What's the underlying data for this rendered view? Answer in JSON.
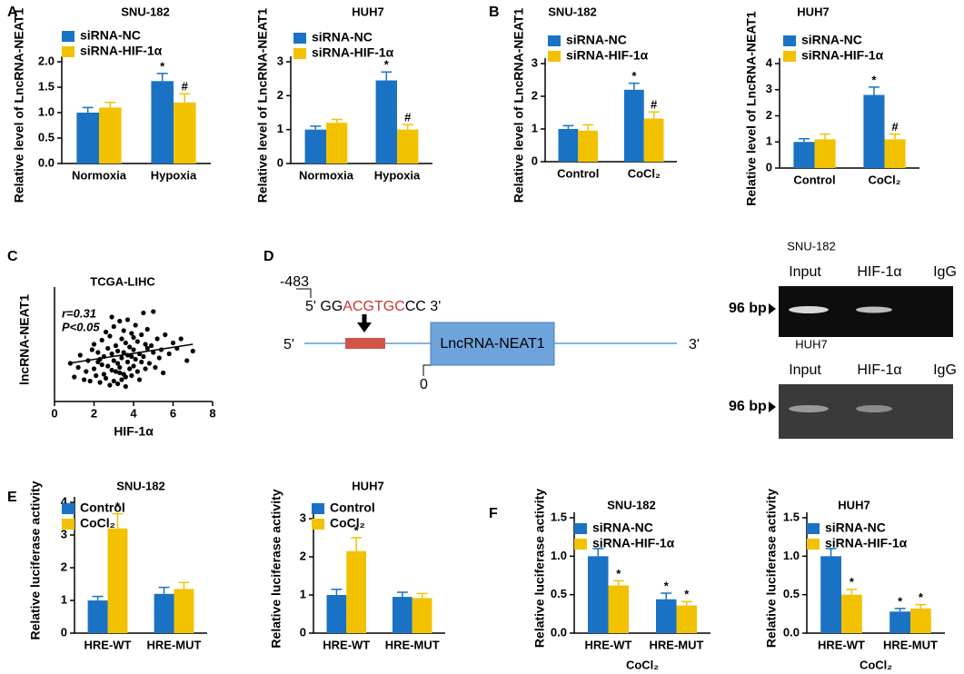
{
  "panels": [
    "A",
    "B",
    "C",
    "D",
    "E",
    "F"
  ],
  "chart_data": [
    {
      "type": "bar",
      "title": "SNU-182",
      "ylabel": "Relative level of LncRNA-NEAT1",
      "categories": [
        "Normoxia",
        "Hypoxia"
      ],
      "ylim": [
        0,
        2
      ],
      "yticks": [
        {
          "value": 0,
          "label": "0.0"
        },
        0.5,
        {
          "value": 1,
          "label": "1.0"
        },
        1.5,
        {
          "value": 2,
          "label": "2.0"
        }
      ],
      "series": [
        {
          "name": "siRNA-NC",
          "color": "#1a72c4",
          "values": [
            1.0,
            1.62
          ],
          "errors": [
            0.1,
            0.15
          ],
          "markers": [
            null,
            "*"
          ]
        },
        {
          "name": "siRNA-HIF-1α",
          "color": "#f2c200",
          "values": [
            1.1,
            1.2
          ],
          "errors": [
            0.1,
            0.17
          ],
          "markers": [
            null,
            "#"
          ]
        }
      ]
    },
    {
      "type": "bar",
      "title": "HUH7",
      "ylabel": "Relative level of LncRNA-NEAT1",
      "categories": [
        "Normoxia",
        "Hypoxia"
      ],
      "ylim": [
        0,
        3
      ],
      "yticks": [
        0,
        1,
        2,
        3
      ],
      "series": [
        {
          "name": "siRNA-NC",
          "color": "#1a72c4",
          "values": [
            1.0,
            2.45
          ],
          "errors": [
            0.1,
            0.25
          ],
          "markers": [
            null,
            "*"
          ]
        },
        {
          "name": "siRNA-HIF-1α",
          "color": "#f2c200",
          "values": [
            1.2,
            1.0
          ],
          "errors": [
            0.1,
            0.15
          ],
          "markers": [
            null,
            "#"
          ]
        }
      ]
    },
    {
      "type": "bar",
      "title": "SNU-182",
      "ylabel": "Relative level of LncRNA-NEAT1",
      "categories": [
        "Control",
        "CoCl₂"
      ],
      "ylim": [
        0,
        3
      ],
      "yticks": [
        0,
        1,
        2,
        3
      ],
      "series": [
        {
          "name": "siRNA-NC",
          "color": "#1a72c4",
          "values": [
            1.0,
            2.2
          ],
          "errors": [
            0.1,
            0.2
          ],
          "markers": [
            null,
            "*"
          ]
        },
        {
          "name": "siRNA-HIF-1α",
          "color": "#f2c200",
          "values": [
            0.95,
            1.32
          ],
          "errors": [
            0.18,
            0.2
          ],
          "markers": [
            null,
            "#"
          ]
        }
      ]
    },
    {
      "type": "bar",
      "title": "HUH7",
      "ylabel": "Relative level of LncRNA-NEAT1",
      "categories": [
        "Control",
        "CoCl₂"
      ],
      "ylim": [
        0,
        4
      ],
      "yticks": [
        0,
        1,
        2,
        3,
        4
      ],
      "series": [
        {
          "name": "siRNA-NC",
          "color": "#1a72c4",
          "values": [
            1.0,
            2.8
          ],
          "errors": [
            0.12,
            0.3
          ],
          "markers": [
            null,
            "*"
          ]
        },
        {
          "name": "siRNA-HIF-1α",
          "color": "#f2c200",
          "values": [
            1.1,
            1.1
          ],
          "errors": [
            0.2,
            0.2
          ],
          "markers": [
            null,
            "#"
          ]
        }
      ]
    },
    {
      "type": "scatter",
      "title": "TCGA-LIHC",
      "xlabel": "HIF-1α",
      "ylabel": "lncRNA-NEAT1",
      "annotations": [
        "r=0.31",
        "P<0.05"
      ],
      "xlim": [
        0,
        8
      ],
      "xticks": [
        0,
        2,
        4,
        6,
        8
      ],
      "ylim": [
        0,
        8
      ],
      "color": "#000000",
      "x": [
        0.8,
        1.0,
        1.2,
        1.3,
        1.5,
        1.6,
        1.7,
        1.8,
        1.9,
        2.0,
        2.0,
        2.1,
        2.2,
        2.2,
        2.3,
        2.4,
        2.4,
        2.5,
        2.5,
        2.6,
        2.6,
        2.7,
        2.7,
        2.8,
        2.8,
        2.9,
        2.9,
        3.0,
        3.0,
        3.0,
        3.1,
        3.1,
        3.2,
        3.2,
        3.2,
        3.3,
        3.3,
        3.4,
        3.4,
        3.4,
        3.5,
        3.5,
        3.5,
        3.6,
        3.6,
        3.7,
        3.7,
        3.7,
        3.8,
        3.8,
        3.9,
        3.9,
        4.0,
        4.0,
        4.0,
        4.1,
        4.1,
        4.2,
        4.2,
        4.3,
        4.3,
        4.4,
        4.4,
        4.5,
        4.5,
        4.6,
        4.7,
        4.7,
        4.8,
        4.9,
        5.0,
        5.0,
        5.1,
        5.2,
        5.3,
        5.4,
        5.5,
        5.6,
        5.8,
        6.0,
        6.2,
        6.4,
        6.7,
        7.0,
        2.3,
        3.3,
        3.9,
        4.6,
        2.9,
        3.6
      ],
      "values": [
        2.8,
        1.8,
        2.5,
        3.4,
        1.6,
        2.2,
        3.0,
        1.5,
        3.8,
        2.4,
        4.2,
        1.9,
        2.9,
        3.6,
        1.4,
        2.7,
        4.5,
        2.0,
        3.3,
        5.1,
        1.7,
        2.6,
        3.9,
        1.2,
        4.8,
        2.3,
        3.5,
        1.5,
        3.0,
        5.5,
        2.2,
        4.1,
        1.3,
        2.8,
        3.7,
        5.9,
        2.5,
        1.6,
        3.2,
        4.6,
        2.0,
        3.6,
        5.2,
        1.8,
        4.3,
        2.9,
        3.4,
        6.0,
        2.4,
        4.0,
        1.9,
        5.0,
        2.6,
        3.8,
        4.7,
        3.1,
        5.6,
        2.2,
        4.4,
        3.5,
        1.6,
        2.9,
        4.9,
        3.3,
        6.5,
        2.4,
        3.9,
        5.3,
        2.8,
        4.1,
        3.6,
        6.6,
        2.5,
        4.6,
        3.2,
        3.8,
        2.1,
        4.9,
        3.5,
        4.3,
        3.9,
        4.6,
        3.0,
        3.7,
        3.1,
        2.1,
        3.3,
        4.2,
        6.2,
        1.1
      ],
      "trend_x": [
        0.7,
        7.0
      ],
      "trend_y": [
        2.8,
        4.2
      ]
    },
    {
      "type": "bar",
      "title": "SNU-182",
      "ylabel": "Relative luciferase activity",
      "categories": [
        "HRE-WT",
        "HRE-MUT"
      ],
      "ylim": [
        0,
        4
      ],
      "yticks": [
        0,
        1,
        2,
        3,
        4
      ],
      "series": [
        {
          "name": "Control",
          "color": "#1a72c4",
          "values": [
            1.0,
            1.2
          ],
          "errors": [
            0.12,
            0.2
          ],
          "markers": [
            null,
            null
          ]
        },
        {
          "name": "CoCl₂",
          "color": "#f2c200",
          "values": [
            3.2,
            1.35
          ],
          "errors": [
            0.45,
            0.2
          ],
          "markers": [
            "*",
            null
          ]
        }
      ]
    },
    {
      "type": "bar",
      "title": "HUH7",
      "ylabel": "Relative luciferase activity",
      "categories": [
        "HRE-WT",
        "HRE-MUT"
      ],
      "ylim": [
        0,
        3
      ],
      "yticks": [
        0,
        1,
        2,
        3
      ],
      "series": [
        {
          "name": "Control",
          "color": "#1a72c4",
          "values": [
            1.0,
            0.95
          ],
          "errors": [
            0.15,
            0.12
          ],
          "markers": [
            null,
            null
          ]
        },
        {
          "name": "CoCl₂",
          "color": "#f2c200",
          "values": [
            2.15,
            0.92
          ],
          "errors": [
            0.35,
            0.12
          ],
          "markers": [
            "*",
            null
          ]
        }
      ]
    },
    {
      "type": "bar",
      "title": "SNU-182",
      "ylabel": "Relative luciferase activity",
      "xlabel": "CoCl₂",
      "categories": [
        "HRE-WT",
        "HRE-MUT"
      ],
      "ylim": [
        0,
        1.5
      ],
      "yticks": [
        {
          "value": 0,
          "label": "0.0"
        },
        0.5,
        {
          "value": 1,
          "label": "1.0"
        },
        1.5
      ],
      "series": [
        {
          "name": "siRNA-NC",
          "color": "#1a72c4",
          "values": [
            1.0,
            0.44
          ],
          "errors": [
            0.1,
            0.08
          ],
          "markers": [
            null,
            "*"
          ]
        },
        {
          "name": "siRNA-HIF-1α",
          "color": "#f2c200",
          "values": [
            0.62,
            0.36
          ],
          "errors": [
            0.06,
            0.05
          ],
          "markers": [
            "*",
            "*"
          ]
        }
      ]
    },
    {
      "type": "bar",
      "title": "HUH7",
      "ylabel": "Relative luciferase activity",
      "xlabel": "CoCl₂",
      "categories": [
        "HRE-WT",
        "HRE-MUT"
      ],
      "ylim": [
        0,
        1.5
      ],
      "yticks": [
        {
          "value": 0,
          "label": "0.0"
        },
        0.5,
        {
          "value": 1,
          "label": "1.0"
        },
        1.5
      ],
      "series": [
        {
          "name": "siRNA-NC",
          "color": "#1a72c4",
          "values": [
            1.0,
            0.28
          ],
          "errors": [
            0.1,
            0.04
          ],
          "markers": [
            null,
            "*"
          ]
        },
        {
          "name": "siRNA-HIF-1α",
          "color": "#f2c200",
          "values": [
            0.5,
            0.32
          ],
          "errors": [
            0.07,
            0.05
          ],
          "markers": [
            "*",
            "*"
          ]
        }
      ]
    }
  ],
  "diagram": {
    "position": "-483",
    "seq_5": "5' GG",
    "motif": "ACGTGC",
    "seq_3": "CC 3'",
    "end_5": "5'",
    "gene": "LncRNA-NEAT1",
    "end_3": "3'",
    "origin": "0"
  },
  "gels": [
    {
      "title": "SNU-182",
      "lanes": [
        "Input",
        "HIF-1α",
        "IgG"
      ],
      "size": "96 bp"
    },
    {
      "title": "HUH7",
      "lanes": [
        "Input",
        "HIF-1α",
        "IgG"
      ],
      "size": "96 bp"
    }
  ]
}
